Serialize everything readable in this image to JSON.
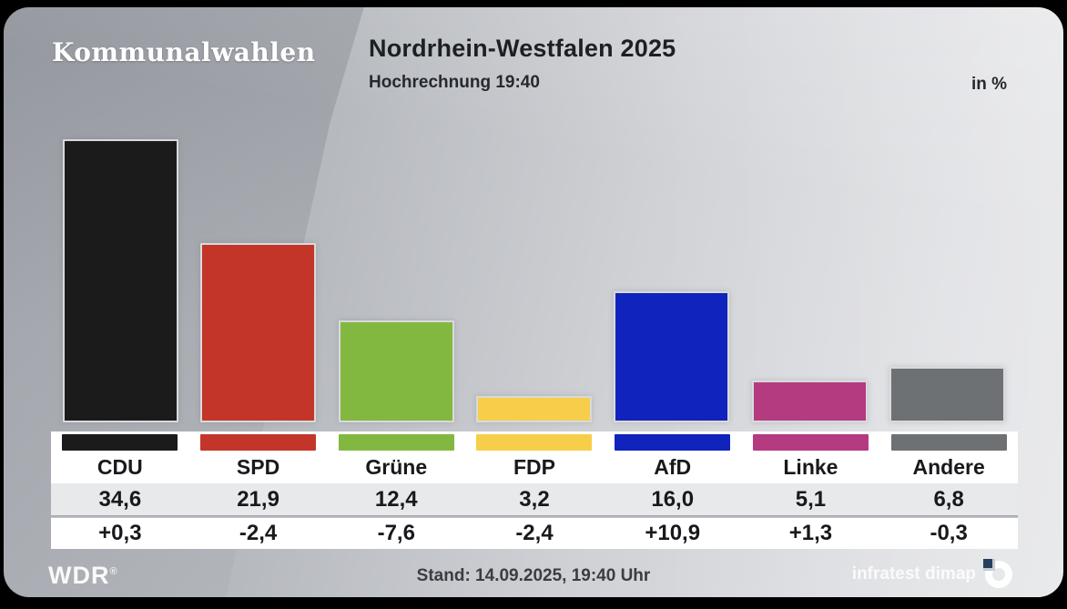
{
  "header": {
    "program_label": "Kommunalwahlen",
    "title": "Nordrhein-Westfalen 2025",
    "subtitle": "Hochrechnung 19:40",
    "unit_label": "in %"
  },
  "parties": [
    {
      "name": "CDU",
      "value": 34.6,
      "value_label": "34,6",
      "change_label": "+0,3",
      "color": "#1b1b1b"
    },
    {
      "name": "SPD",
      "value": 21.9,
      "value_label": "21,9",
      "change_label": "-2,4",
      "color": "#c43529"
    },
    {
      "name": "Grüne",
      "value": 12.4,
      "value_label": "12,4",
      "change_label": "-7,6",
      "color": "#83b840"
    },
    {
      "name": "FDP",
      "value": 3.2,
      "value_label": "3,2",
      "change_label": "-2,4",
      "color": "#f6ce49"
    },
    {
      "name": "AfD",
      "value": 16.0,
      "value_label": "16,0",
      "change_label": "+10,9",
      "color": "#1123bd"
    },
    {
      "name": "Linke",
      "value": 5.1,
      "value_label": "5,1",
      "change_label": "+1,3",
      "color": "#b43b80"
    },
    {
      "name": "Andere",
      "value": 6.8,
      "value_label": "6,8",
      "change_label": "-0,3",
      "color": "#6e7173"
    }
  ],
  "chart_data": {
    "type": "bar",
    "title": "Nordrhein-Westfalen 2025",
    "subtitle": "Hochrechnung 19:40",
    "unit": "in %",
    "categories": [
      "CDU",
      "SPD",
      "Grüne",
      "FDP",
      "AfD",
      "Linke",
      "Andere"
    ],
    "values": [
      34.6,
      21.9,
      12.4,
      3.2,
      16.0,
      5.1,
      6.8
    ],
    "changes": [
      0.3,
      -2.4,
      -7.6,
      -2.4,
      10.9,
      1.3,
      -0.3
    ],
    "bar_colors": [
      "#1b1b1b",
      "#c43529",
      "#83b840",
      "#f6ce49",
      "#1123bd",
      "#b43b80",
      "#6e7173"
    ],
    "ylim": [
      0,
      36
    ],
    "grid": false,
    "axes_shown": false,
    "legend": "none"
  },
  "footer": {
    "broadcaster": "WDR",
    "registered_mark": "®",
    "status": "Stand: 14.09.2025, 19:40 Uhr",
    "source": "infratest dimap"
  },
  "colors": {
    "panel_dark": "#aaadb3",
    "panel_light": "#e6e7e9",
    "table_row_alt": "#e8e9eb",
    "text_dark": "#1d2023",
    "dimap_blue": "#24405e"
  }
}
